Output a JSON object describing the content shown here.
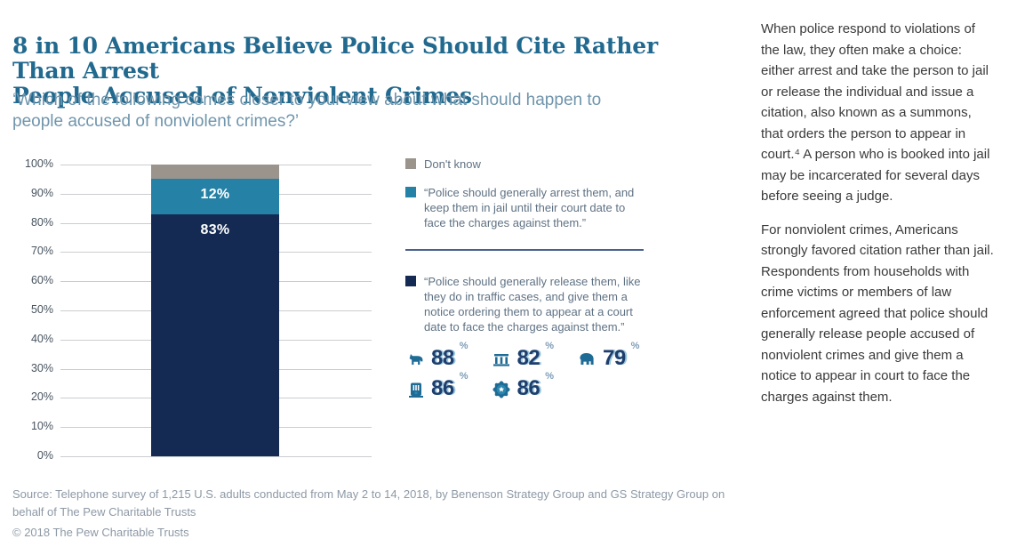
{
  "page": {
    "title_lines": [
      "8 in 10 Americans Believe Police Should Cite Rather Than Arrest",
      "People Accused of Nonviolent Crimes"
    ],
    "subtitle_lines": [
      "‘Which of the following comes closer to your view about what should happen to",
      "people accused of nonviolent crimes?’"
    ],
    "source_note": "Source: Telephone survey of 1,215 U.S. adults conducted from May 2 to 14, 2018, by Benenson Strategy Group and GS Strategy Group on behalf of The Pew Charitable Trusts",
    "copyright": "© 2018 The Pew Charitable Trusts"
  },
  "chart_data": {
    "type": "bar",
    "stacked": true,
    "categories": [
      ""
    ],
    "series": [
      {
        "name": "Police should generally release them",
        "values": [
          83
        ],
        "color": "#152a52",
        "label": "83%"
      },
      {
        "name": "Police should generally arrest them",
        "values": [
          12
        ],
        "color": "#2581a5",
        "label": "12%"
      },
      {
        "name": "Don't know",
        "values": [
          5
        ],
        "color": "#9b948d",
        "label": ""
      }
    ],
    "title": "8 in 10 Americans Believe Police Should Cite Rather Than Arrest People Accused of Nonviolent Crimes",
    "xlabel": "",
    "ylabel": "",
    "ylim": [
      0,
      100
    ],
    "yticks": [
      "0%",
      "10%",
      "20%",
      "30%",
      "40%",
      "50%",
      "60%",
      "70%",
      "80%",
      "90%",
      "100%"
    ],
    "grid": true,
    "legend_position": "right"
  },
  "legend": {
    "items": [
      {
        "swatch": "#9b948d",
        "text": "Don't know"
      },
      {
        "swatch": "#2581a5",
        "text": "“Police should generally arrest them, and keep them in jail until their court date to face the charges against them.”"
      },
      {
        "swatch": "#152a52",
        "text": "“Police should generally release them, like they do in traffic cases, and give them a notice ordering them to appear at a court date to face the charges against them.”"
      }
    ]
  },
  "stats": {
    "groups": [
      {
        "icon": "donkey-icon",
        "value": "88",
        "unit": "%"
      },
      {
        "icon": "jail-bars-icon",
        "value": "82",
        "unit": "%"
      },
      {
        "icon": "elephant-icon",
        "value": "79",
        "unit": "%"
      },
      {
        "icon": "jail-door-icon",
        "value": "86",
        "unit": "%"
      },
      {
        "icon": "police-badge-icon",
        "value": "86",
        "unit": "%"
      }
    ]
  },
  "sidebar": {
    "paragraphs": [
      "When police respond to violations of the law, they often make a choice: either arrest and take the person to jail or release the individual and issue a citation, also known as a summons, that orders the person to appear in court.⁴ A person who is booked into jail may be incarcerated for several days before seeing a judge.",
      "For nonviolent crimes, Americans strongly favored citation rather than jail. Respondents from households with crime victims or members of law enforcement agreed that police should generally release people accused of nonviolent crimes and give them a notice to appear in court to face the charges against them."
    ]
  },
  "colors": {
    "navy": "#152a52",
    "teal": "#2581a5",
    "gray": "#9b948d",
    "title_blue": "#21698e",
    "subtitle_blue": "#7095ac",
    "legend_text": "#5f7284",
    "number_navy": "#1e3e6d",
    "number_shadow": "#9cc8de",
    "gridline": "#cacdd0",
    "source_gray": "#8d99a6",
    "sidebar_text": "#3a3a3a"
  }
}
